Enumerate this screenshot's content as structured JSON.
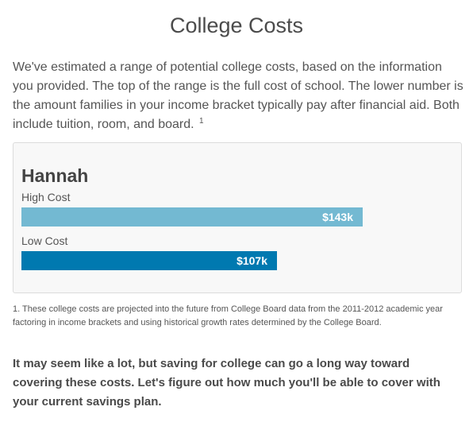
{
  "header": {
    "title": "College Costs"
  },
  "intro": {
    "text": "We've estimated a range of potential college costs, based on the information you provided. The top of the range is the full cost of school. The lower number is the amount families in your income bracket typically pay after financial aid. Both include tuition, room, and board.",
    "footnote_marker": "1"
  },
  "cost_card": {
    "student_name": "Hannah",
    "high": {
      "label": "High Cost",
      "value_label": "$143k",
      "value": 143,
      "color": "#73b9d2"
    },
    "low": {
      "label": "Low Cost",
      "value_label": "$107k",
      "value": 107,
      "color": "#0079b0"
    }
  },
  "footnote": {
    "text": "1. These college costs are projected into the future from College Board data from the 2011-2012 academic year factoring in income brackets and using historical growth rates determined by the College Board."
  },
  "closing": {
    "text": "It may seem like a lot, but saving for college can go a long way toward covering these costs. Let's figure out how much you'll be able to cover with your current savings plan."
  }
}
